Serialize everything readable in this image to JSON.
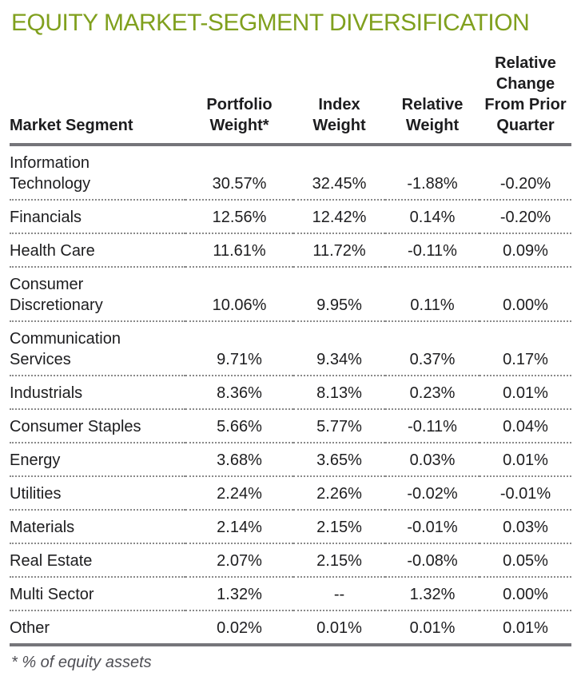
{
  "title": "EQUITY MARKET-SEGMENT DIVERSIFICATION",
  "footnote": "* % of equity assets",
  "colors": {
    "title_green": "#80a01e",
    "text": "#1d1d1f",
    "rule_gray": "#75757a",
    "dotted_gray": "#8a8a8a",
    "footnote_gray": "#4f4f55"
  },
  "table": {
    "columns": [
      {
        "id": "segment",
        "label": "Market Segment",
        "display": "Market Segment",
        "align": "left"
      },
      {
        "id": "portfolio_weight",
        "label": "Portfolio Weight*",
        "display": "Portfolio\nWeight*",
        "align": "center"
      },
      {
        "id": "index_weight",
        "label": "Index Weight",
        "display": "Index\nWeight",
        "align": "center"
      },
      {
        "id": "relative_weight",
        "label": "Relative Weight",
        "display": "Relative\nWeight",
        "align": "center"
      },
      {
        "id": "relative_change",
        "label": "Relative Change From Prior Quarter",
        "display": "Relative\nChange\nFrom Prior\nQuarter",
        "align": "center"
      }
    ],
    "rows": [
      {
        "segment": "Information Technology",
        "segment_display": "Information\nTechnology",
        "portfolio_weight": "30.57%",
        "index_weight": "32.45%",
        "relative_weight": "-1.88%",
        "relative_change": "-0.20%"
      },
      {
        "segment": "Financials",
        "segment_display": "Financials",
        "portfolio_weight": "12.56%",
        "index_weight": "12.42%",
        "relative_weight": "0.14%",
        "relative_change": "-0.20%"
      },
      {
        "segment": "Health Care",
        "segment_display": "Health Care",
        "portfolio_weight": "11.61%",
        "index_weight": "11.72%",
        "relative_weight": "-0.11%",
        "relative_change": "0.09%"
      },
      {
        "segment": "Consumer Discretionary",
        "segment_display": "Consumer\nDiscretionary",
        "portfolio_weight": "10.06%",
        "index_weight": "9.95%",
        "relative_weight": "0.11%",
        "relative_change": "0.00%"
      },
      {
        "segment": "Communication Services",
        "segment_display": "Communication\nServices",
        "portfolio_weight": "9.71%",
        "index_weight": "9.34%",
        "relative_weight": "0.37%",
        "relative_change": "0.17%"
      },
      {
        "segment": "Industrials",
        "segment_display": "Industrials",
        "portfolio_weight": "8.36%",
        "index_weight": "8.13%",
        "relative_weight": "0.23%",
        "relative_change": "0.01%"
      },
      {
        "segment": "Consumer Staples",
        "segment_display": "Consumer Staples",
        "portfolio_weight": "5.66%",
        "index_weight": "5.77%",
        "relative_weight": "-0.11%",
        "relative_change": "0.04%"
      },
      {
        "segment": "Energy",
        "segment_display": "Energy",
        "portfolio_weight": "3.68%",
        "index_weight": "3.65%",
        "relative_weight": "0.03%",
        "relative_change": "0.01%"
      },
      {
        "segment": "Utilities",
        "segment_display": "Utilities",
        "portfolio_weight": "2.24%",
        "index_weight": "2.26%",
        "relative_weight": "-0.02%",
        "relative_change": "-0.01%"
      },
      {
        "segment": "Materials",
        "segment_display": "Materials",
        "portfolio_weight": "2.14%",
        "index_weight": "2.15%",
        "relative_weight": "-0.01%",
        "relative_change": "0.03%"
      },
      {
        "segment": "Real Estate",
        "segment_display": "Real Estate",
        "portfolio_weight": "2.07%",
        "index_weight": "2.15%",
        "relative_weight": "-0.08%",
        "relative_change": "0.05%"
      },
      {
        "segment": "Multi Sector",
        "segment_display": "Multi Sector",
        "portfolio_weight": "1.32%",
        "index_weight": "--",
        "relative_weight": "1.32%",
        "relative_change": "0.00%"
      },
      {
        "segment": "Other",
        "segment_display": "Other",
        "portfolio_weight": "0.02%",
        "index_weight": "0.01%",
        "relative_weight": "0.01%",
        "relative_change": "0.01%"
      }
    ]
  }
}
